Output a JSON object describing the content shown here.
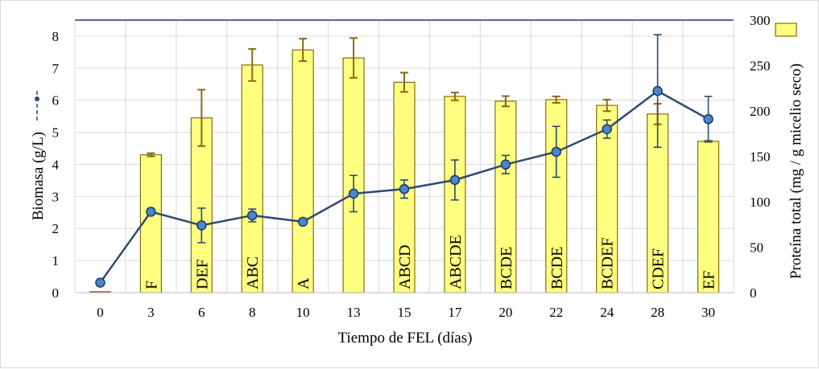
{
  "chart_data": {
    "type": "bar",
    "categories": [
      "0",
      "3",
      "6",
      "8",
      "10",
      "13",
      "15",
      "17",
      "20",
      "22",
      "24",
      "28",
      "30"
    ],
    "xlabel": "Tiempo de FEL  (días)",
    "ylabel_left": "Biomasa (g/L)",
    "ylabel_right": "Proteína total (mg / g micelio seco)",
    "ylim_left": [
      0,
      8.5
    ],
    "ylim_right": [
      0,
      300
    ],
    "yticks_left": [
      "0",
      "1",
      "2",
      "3",
      "4",
      "5",
      "6",
      "7",
      "8"
    ],
    "yticks_right": [
      "0",
      "50",
      "100",
      "150",
      "200",
      "250",
      "300"
    ],
    "grid": true,
    "series": [
      {
        "kind": "bar",
        "axis": "left",
        "color": "#ffff80",
        "edge_color": "#8b6914",
        "values": [
          0.03,
          4.3,
          5.45,
          7.1,
          7.57,
          7.32,
          6.56,
          6.12,
          5.97,
          6.02,
          5.84,
          5.57,
          4.72
        ],
        "errors": [
          0,
          0.05,
          0.88,
          0.5,
          0.35,
          0.62,
          0.3,
          0.12,
          0.16,
          0.1,
          0.18,
          0.32,
          0.02
        ],
        "labels": [
          "",
          "F",
          "DEF",
          "ABC",
          "A",
          "",
          "ABCD",
          "ABCDE",
          "BCDE",
          "BCDE",
          "BCDEF",
          "CDEF",
          "EF"
        ]
      },
      {
        "kind": "line",
        "axis": "right",
        "color": "#2e4a6e",
        "marker_color": "#4a86c8",
        "values": [
          11,
          89,
          74,
          85,
          78,
          109,
          114,
          124,
          141,
          155,
          180,
          222,
          191
        ],
        "errors": [
          0,
          3,
          19,
          7,
          3,
          20,
          10,
          22,
          10,
          28,
          10,
          62,
          25
        ]
      }
    ],
    "legend": {
      "position": "top-right"
    }
  }
}
